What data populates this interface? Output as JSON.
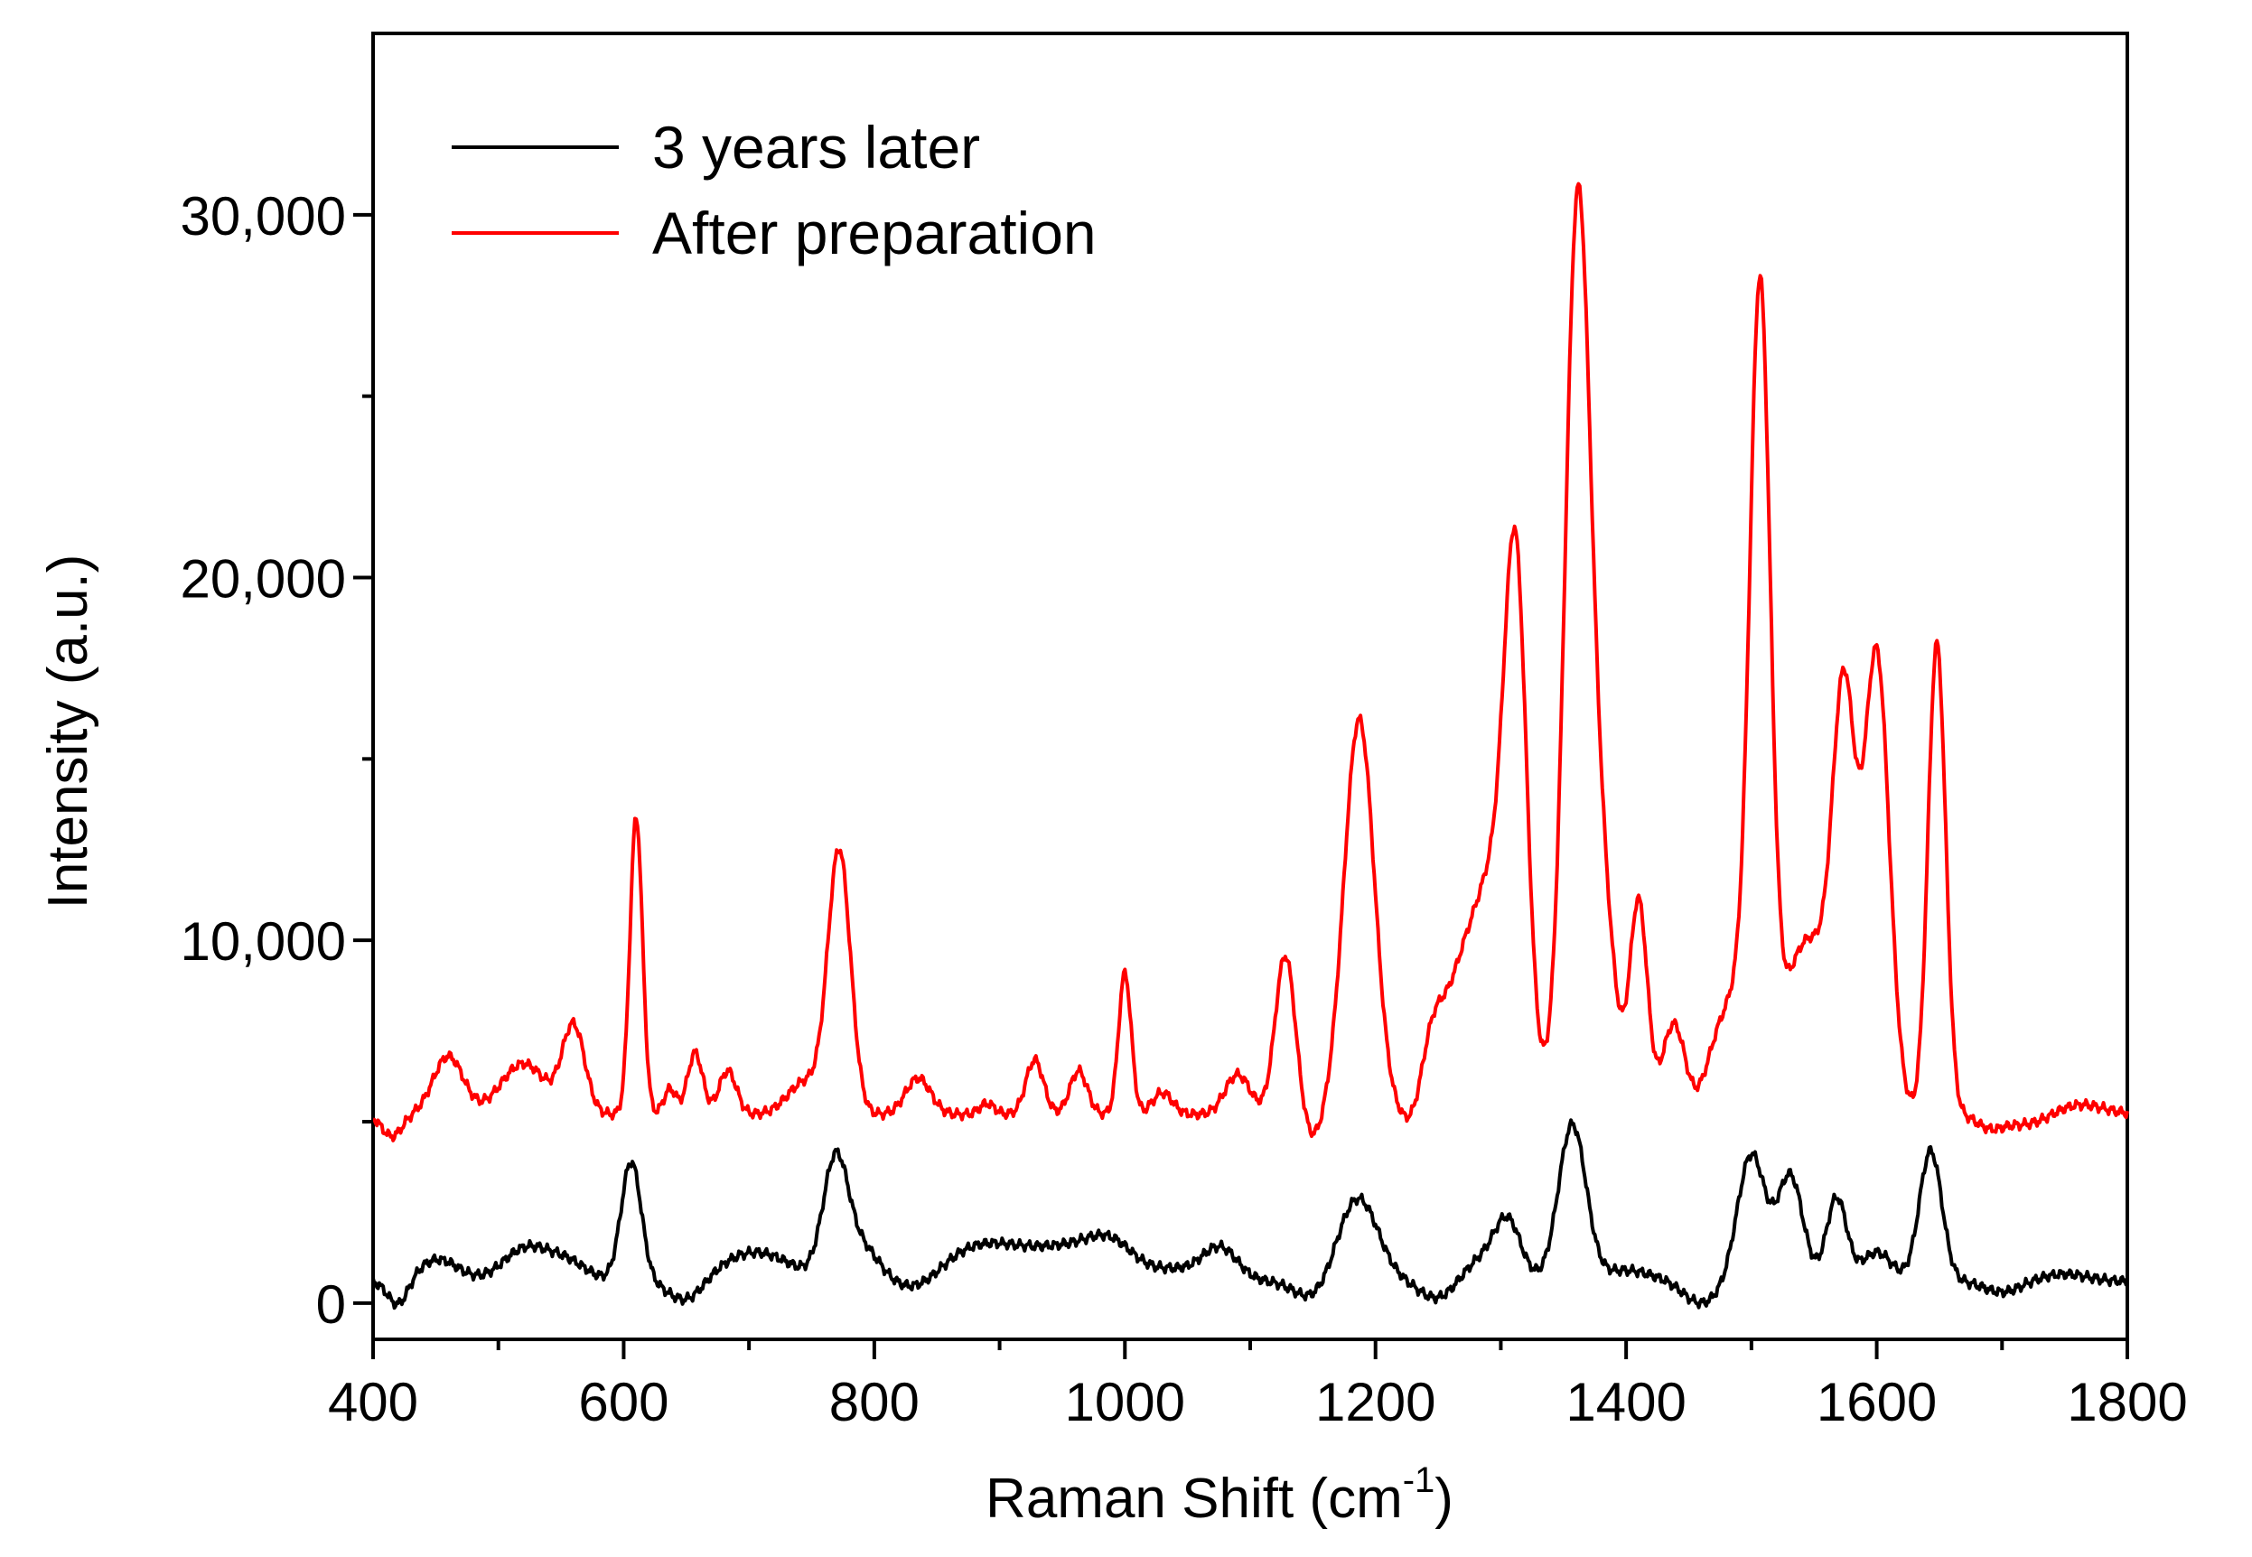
{
  "chart_data": {
    "type": "line",
    "xlabel": "Raman Shift (cm",
    "xlabel_superscript": "-1",
    "xlabel_suffix": ")",
    "ylabel": "Intensity (a.u.)",
    "xlim": [
      400,
      1800
    ],
    "ylim": [
      -1000,
      35000
    ],
    "x_ticks": [
      400,
      600,
      800,
      1000,
      1200,
      1400,
      1600,
      1800
    ],
    "x_tick_labels": [
      "400",
      "600",
      "800",
      "1000",
      "1200",
      "1400",
      "1600",
      "1800"
    ],
    "y_ticks": [
      0,
      10000,
      20000,
      30000
    ],
    "y_tick_labels": [
      "0",
      "10,000",
      "20,000",
      "30,000"
    ],
    "grid": false,
    "legend_position": "top-left",
    "series": [
      {
        "name": "3 years later",
        "color": "#000000",
        "baseline": 600,
        "peaks": [
          [
            420,
            -700,
            8
          ],
          [
            452,
            600,
            16
          ],
          [
            522,
            900,
            18
          ],
          [
            555,
            500,
            16
          ],
          [
            606,
            3300,
            8
          ],
          [
            650,
            -600,
            14
          ],
          [
            705,
            800,
            28
          ],
          [
            769,
            3200,
            10
          ],
          [
            790,
            900,
            14
          ],
          [
            835,
            -400,
            18
          ],
          [
            888,
            1000,
            35
          ],
          [
            960,
            800,
            30
          ],
          [
            990,
            700,
            18
          ],
          [
            1040,
            300,
            20
          ],
          [
            1076,
            900,
            14
          ],
          [
            1150,
            -500,
            14
          ],
          [
            1186,
            2300,
            16
          ],
          [
            1250,
            -500,
            14
          ],
          [
            1290,
            700,
            18
          ],
          [
            1306,
            1300,
            10
          ],
          [
            1357,
            4300,
            11
          ],
          [
            1400,
            300,
            20
          ],
          [
            1460,
            -600,
            14
          ],
          [
            1500,
            3500,
            11
          ],
          [
            1531,
            2900,
            10
          ],
          [
            1568,
            2300,
            8
          ],
          [
            1600,
            800,
            12
          ],
          [
            1643,
            3600,
            9
          ],
          [
            1700,
            -300,
            14
          ],
          [
            1750,
            200,
            18
          ]
        ]
      },
      {
        "name": "After preparation",
        "color": "#ff0000",
        "baseline": 5200,
        "peaks": [
          [
            415,
            -600,
            8
          ],
          [
            460,
            1600,
            12
          ],
          [
            520,
            1400,
            18
          ],
          [
            560,
            2400,
            9
          ],
          [
            610,
            8200,
            5
          ],
          [
            637,
            700,
            5
          ],
          [
            657,
            1700,
            6
          ],
          [
            683,
            1200,
            7
          ],
          [
            745,
            900,
            14
          ],
          [
            772,
            7200,
            9
          ],
          [
            835,
            1000,
            10
          ],
          [
            890,
            300,
            6
          ],
          [
            928,
            1500,
            7
          ],
          [
            963,
            1200,
            7
          ],
          [
            1000,
            3900,
            5
          ],
          [
            1030,
            600,
            8
          ],
          [
            1090,
            1100,
            10
          ],
          [
            1128,
            4400,
            8
          ],
          [
            1150,
            -700,
            8
          ],
          [
            1187,
            10900,
            12
          ],
          [
            1230,
            -400,
            8
          ],
          [
            1245,
            1700,
            9
          ],
          [
            1272,
            4200,
            16
          ],
          [
            1295,
            4500,
            12
          ],
          [
            1312,
            14200,
            9
          ],
          [
            1335,
            500,
            8
          ],
          [
            1361,
            24200,
            10
          ],
          [
            1380,
            5800,
            11
          ],
          [
            1410,
            5800,
            7
          ],
          [
            1438,
            2500,
            9
          ],
          [
            1470,
            900,
            9
          ],
          [
            1490,
            3200,
            14
          ],
          [
            1507,
            20800,
            8
          ],
          [
            1545,
            4800,
            20
          ],
          [
            1574,
            10200,
            9
          ],
          [
            1600,
            12600,
            10
          ],
          [
            1648,
            13000,
            7
          ],
          [
            1690,
            -300,
            10
          ],
          [
            1720,
            -300,
            20
          ],
          [
            1760,
            300,
            20
          ]
        ]
      }
    ]
  }
}
